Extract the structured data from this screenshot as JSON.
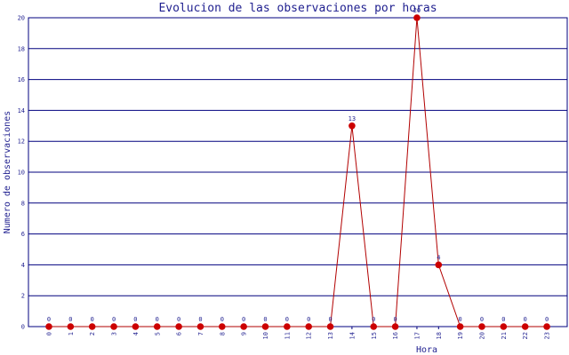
{
  "chart_data": {
    "type": "line",
    "title": "Evolucion de las observaciones por horas",
    "xlabel": "Hora",
    "ylabel": "Numero de observaciones",
    "x": [
      "0",
      "1",
      "2",
      "3",
      "4",
      "5",
      "6",
      "7",
      "8",
      "9",
      "10",
      "11",
      "12",
      "13",
      "14",
      "15",
      "16",
      "17",
      "18",
      "19",
      "20",
      "21",
      "22",
      "23"
    ],
    "series": [
      {
        "values": [
          0,
          0,
          0,
          0,
          0,
          0,
          0,
          0,
          0,
          0,
          0,
          0,
          0,
          0,
          13,
          0,
          0,
          20,
          4,
          0,
          0,
          0,
          0,
          0
        ]
      }
    ],
    "ylim": [
      0,
      20
    ],
    "yticks": [
      0,
      2,
      4,
      6,
      8,
      10,
      12,
      14,
      16,
      18,
      20
    ],
    "grid": true,
    "legend": "none",
    "colors": {
      "line": "#b20000",
      "marker": "#cc0000",
      "grid": "#00007f",
      "text": "#1f1f8f"
    }
  }
}
